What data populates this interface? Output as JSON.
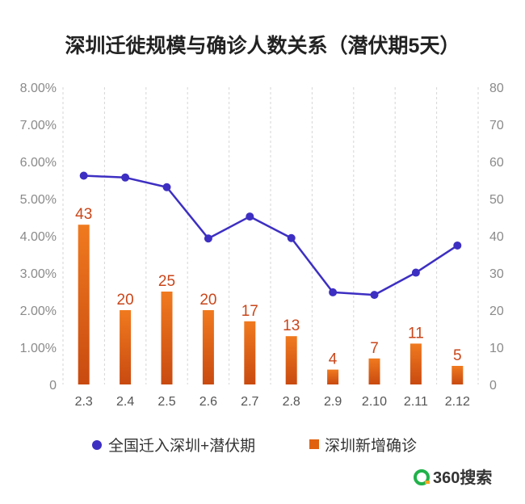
{
  "chart_data": {
    "type": "bar+line",
    "title": "深圳迁徙规模与确诊人数关系（潜伏期5天）",
    "categories": [
      "2.3",
      "2.4",
      "2.5",
      "2.6",
      "2.7",
      "2.8",
      "2.9",
      "2.10",
      "2.11",
      "2.12"
    ],
    "series": [
      {
        "name": "全国迁入深圳+潜伏期",
        "type": "line",
        "axis": "left",
        "color": "#3d2fc2",
        "values": [
          5.62,
          5.57,
          5.31,
          3.93,
          4.52,
          3.94,
          2.48,
          2.41,
          3.01,
          3.74
        ]
      },
      {
        "name": "深圳新增确诊",
        "type": "bar",
        "axis": "right",
        "color": "#e0620f",
        "values": [
          43,
          20,
          25,
          20,
          17,
          13,
          4,
          7,
          11,
          5
        ]
      }
    ],
    "y_left": {
      "min": 0,
      "max": 8,
      "ticks": [
        "0",
        "1.00%",
        "2.00%",
        "3.00%",
        "4.00%",
        "5.00%",
        "6.00%",
        "7.00%",
        "8.00%"
      ]
    },
    "y_right": {
      "min": 0,
      "max": 80,
      "ticks": [
        "0",
        "10",
        "20",
        "30",
        "40",
        "50",
        "60",
        "70",
        "80"
      ]
    },
    "grid": "vertical dashed",
    "legend_position": "bottom"
  },
  "brand": {
    "name": "360搜索",
    "color": "#20b24a"
  }
}
